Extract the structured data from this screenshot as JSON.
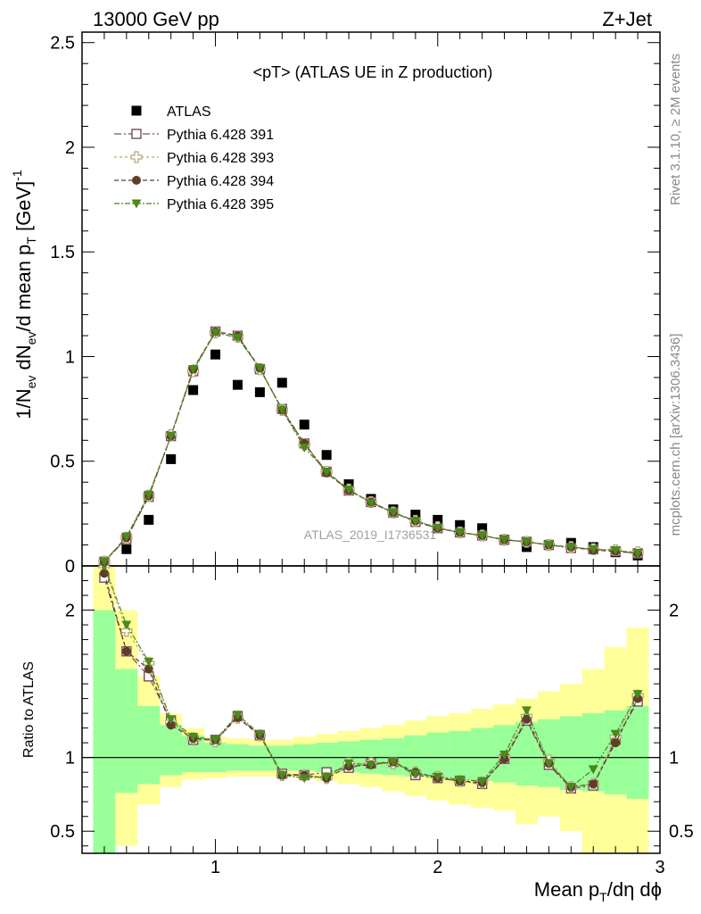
{
  "header": {
    "left": "13000 GeV pp",
    "right": "Z+Jet"
  },
  "side_labels": {
    "rivet": "Rivet 3.1.10, ≥ 2M events",
    "mcplots": "mcplots.cern.ch [arXiv:1306.3436]"
  },
  "watermark": "ATLAS_2019_I1736531",
  "colors": {
    "atlas": "#000000",
    "s391": "#7a4a5e",
    "s393": "#b8a878",
    "s394": "#5f3e28",
    "s395": "#4a8a1a",
    "band_inner": "#99ff99",
    "band_outer": "#ffff99"
  },
  "chart_data": [
    {
      "type": "scatter",
      "panel": "main",
      "title": "<pT> (ATLAS UE in Z production)",
      "ylabel": "1/N_ev dN_ev/d mean p_T [GeV]^-1",
      "xlabel": "Mean p_T/dη dϕ",
      "xlim": [
        0.4,
        3.0
      ],
      "ylim": [
        0,
        2.55
      ],
      "yticks": [
        0,
        0.5,
        1,
        1.5,
        2,
        2.5
      ],
      "ytick_labels": [
        "0",
        "0.5",
        "1",
        "1.5",
        "2",
        "2.5"
      ],
      "legend_position": "top-left",
      "x": [
        0.5,
        0.6,
        0.7,
        0.8,
        0.9,
        1.0,
        1.1,
        1.2,
        1.3,
        1.4,
        1.5,
        1.6,
        1.7,
        1.8,
        1.9,
        2.0,
        2.1,
        2.2,
        2.3,
        2.4,
        2.5,
        2.6,
        2.7,
        2.8,
        2.9
      ],
      "series": [
        {
          "name": "ATLAS",
          "marker": "filled-square",
          "values": [
            0.01,
            0.08,
            0.22,
            0.51,
            0.84,
            1.01,
            0.865,
            0.83,
            0.875,
            0.675,
            0.53,
            0.39,
            0.32,
            0.27,
            0.245,
            0.22,
            0.195,
            0.18,
            0.125,
            0.09,
            0.1,
            0.11,
            0.09,
            0.065,
            0.05
          ]
        },
        {
          "name": "Pythia 6.428 391",
          "marker": "open-square",
          "values": [
            0.02,
            0.13,
            0.33,
            0.62,
            0.93,
            1.12,
            1.1,
            0.94,
            0.75,
            0.585,
            0.45,
            0.36,
            0.305,
            0.255,
            0.21,
            0.18,
            0.16,
            0.145,
            0.125,
            0.115,
            0.1,
            0.085,
            0.08,
            0.07,
            0.06
          ]
        },
        {
          "name": "Pythia 6.428 393",
          "marker": "open-cross",
          "values": [
            0.02,
            0.135,
            0.335,
            0.625,
            0.93,
            1.115,
            1.095,
            0.94,
            0.745,
            0.58,
            0.45,
            0.365,
            0.305,
            0.255,
            0.215,
            0.185,
            0.16,
            0.145,
            0.125,
            0.115,
            0.1,
            0.09,
            0.08,
            0.075,
            0.065
          ]
        },
        {
          "name": "Pythia 6.428 394",
          "marker": "filled-circle",
          "values": [
            0.02,
            0.135,
            0.335,
            0.62,
            0.94,
            1.12,
            1.1,
            0.945,
            0.745,
            0.585,
            0.445,
            0.36,
            0.305,
            0.255,
            0.215,
            0.18,
            0.16,
            0.145,
            0.125,
            0.115,
            0.1,
            0.09,
            0.075,
            0.07,
            0.06
          ]
        },
        {
          "name": "Pythia 6.428 395",
          "marker": "filled-triangle-down",
          "values": [
            0.02,
            0.14,
            0.34,
            0.62,
            0.94,
            1.115,
            1.09,
            0.945,
            0.745,
            0.565,
            0.45,
            0.365,
            0.3,
            0.255,
            0.215,
            0.18,
            0.16,
            0.145,
            0.125,
            0.115,
            0.1,
            0.09,
            0.08,
            0.075,
            0.06
          ]
        }
      ]
    },
    {
      "type": "scatter",
      "panel": "ratio",
      "ylabel": "Ratio to ATLAS",
      "xlabel": "Mean p_T/dη dϕ",
      "xlim": [
        0.4,
        3.0
      ],
      "ylim": [
        0.35,
        2.3
      ],
      "yticks": [
        0.5,
        1,
        2
      ],
      "ytick_labels": [
        "0.5",
        "1",
        "2"
      ],
      "xticks": [
        1,
        2,
        3
      ],
      "xtick_labels": [
        "1",
        "2",
        "3"
      ],
      "reference_line": 1,
      "band_edges": [
        0.45,
        0.55,
        0.65,
        0.75,
        0.85,
        0.95,
        1.05,
        1.15,
        1.25,
        1.35,
        1.45,
        1.55,
        1.65,
        1.75,
        1.85,
        1.95,
        2.05,
        2.15,
        2.25,
        2.35,
        2.45,
        2.55,
        2.65,
        2.75,
        2.85,
        2.95
      ],
      "band_inner_lo": [
        0.35,
        0.76,
        0.82,
        0.88,
        0.9,
        0.9,
        0.91,
        0.91,
        0.91,
        0.91,
        0.9,
        0.9,
        0.89,
        0.88,
        0.87,
        0.86,
        0.85,
        0.84,
        0.83,
        0.81,
        0.8,
        0.78,
        0.77,
        0.75,
        0.72
      ],
      "band_inner_hi": [
        2.0,
        1.6,
        1.35,
        1.22,
        1.15,
        1.1,
        1.09,
        1.08,
        1.08,
        1.09,
        1.1,
        1.11,
        1.12,
        1.13,
        1.15,
        1.17,
        1.18,
        1.2,
        1.22,
        1.24,
        1.26,
        1.28,
        1.3,
        1.32,
        1.35
      ],
      "band_outer_lo": [
        0.35,
        0.4,
        0.68,
        0.8,
        0.85,
        0.86,
        0.87,
        0.87,
        0.87,
        0.86,
        0.84,
        0.82,
        0.8,
        0.77,
        0.74,
        0.71,
        0.68,
        0.66,
        0.64,
        0.55,
        0.6,
        0.5,
        0.35,
        0.35,
        0.35
      ],
      "band_outer_hi": [
        2.3,
        2.0,
        1.55,
        1.3,
        1.2,
        1.14,
        1.13,
        1.12,
        1.12,
        1.14,
        1.16,
        1.18,
        1.2,
        1.22,
        1.25,
        1.28,
        1.3,
        1.33,
        1.36,
        1.4,
        1.45,
        1.5,
        1.6,
        1.75,
        1.88
      ],
      "x": [
        0.5,
        0.6,
        0.7,
        0.8,
        0.9,
        1.0,
        1.1,
        1.2,
        1.3,
        1.4,
        1.5,
        1.6,
        1.7,
        1.8,
        1.9,
        2.0,
        2.1,
        2.2,
        2.3,
        2.4,
        2.5,
        2.6,
        2.7,
        2.8,
        2.9
      ],
      "series": [
        {
          "name": "Pythia 6.428 391",
          "marker": "open-square",
          "values": [
            2.22,
            1.72,
            1.55,
            1.25,
            1.12,
            1.12,
            1.28,
            1.15,
            0.89,
            0.88,
            0.9,
            0.93,
            0.96,
            0.97,
            0.88,
            0.86,
            0.84,
            0.82,
            0.99,
            1.25,
            0.95,
            0.79,
            0.81,
            1.12,
            1.38
          ]
        },
        {
          "name": "Pythia 6.428 393",
          "marker": "open-cross",
          "values": [
            2.3,
            1.86,
            1.64,
            1.24,
            1.13,
            1.11,
            1.27,
            1.15,
            0.88,
            0.88,
            0.86,
            0.96,
            0.96,
            0.96,
            0.9,
            0.87,
            0.84,
            0.83,
            1.0,
            1.28,
            0.98,
            0.8,
            0.82,
            1.14,
            1.42
          ]
        },
        {
          "name": "Pythia 6.428 394",
          "marker": "filled-circle",
          "values": [
            2.25,
            1.72,
            1.6,
            1.22,
            1.13,
            1.12,
            1.27,
            1.15,
            0.88,
            0.88,
            0.86,
            0.94,
            0.95,
            0.97,
            0.9,
            0.86,
            0.84,
            0.83,
            0.99,
            1.26,
            0.96,
            0.8,
            0.82,
            1.1,
            1.4
          ]
        },
        {
          "name": "Pythia 6.428 395",
          "marker": "filled-triangle-down",
          "values": [
            2.3,
            1.9,
            1.65,
            1.26,
            1.14,
            1.12,
            1.29,
            1.16,
            0.88,
            0.86,
            0.87,
            0.96,
            0.95,
            0.97,
            0.89,
            0.87,
            0.85,
            0.84,
            1.02,
            1.32,
            0.96,
            0.8,
            0.92,
            1.16,
            1.43
          ]
        }
      ]
    }
  ]
}
